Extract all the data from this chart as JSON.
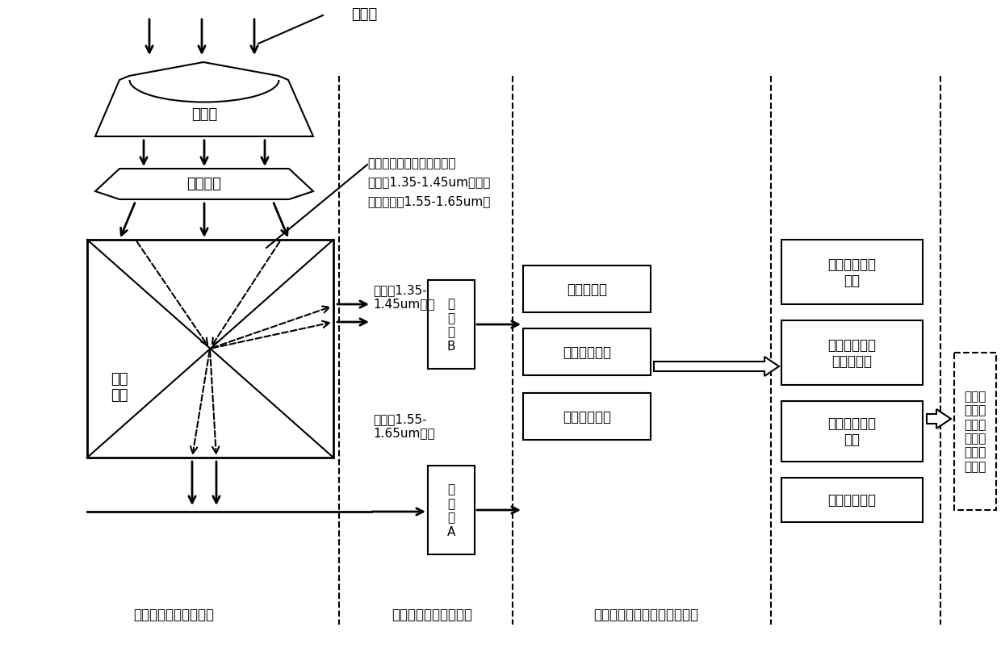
{
  "bg_color": "#ffffff",
  "title_top": "入射光",
  "section1_label": "分光谱双光路光学系统",
  "section2_label": "图像探测及预处理组件",
  "section3_label": "差分图像处理标定方法与算法",
  "label_zhegguang": "遂光罩",
  "label_guangxue": "光学鈥头",
  "label_fenguang": "分光\n棱鈥",
  "annotation_text": "分光棱鈥镀膜面：反射光谱\n范围为1.35-1.45um；透射\n光谱范围为1.55-1.65um。",
  "label_reflect_full": "反射的1.35-\n1.45um波段",
  "label_transmit": "透射的1.55-\n1.65um波段",
  "label_detectorB": "探\n测\n器\nB",
  "label_detectorA": "探\n测\n器\nA",
  "box_preprocess": "前置处理板",
  "box_control": "控制处理电路",
  "box_image_proc": "图像处理电路",
  "box_dual_detector": "双探测器协同\n处理",
  "box_dual_optical": "双光路图像像\n素对齐标定",
  "box_gray_match": "差分图像灰度\n匹配",
  "box_diff_algo": "图像差分算法",
  "box_final": "抑制白\n天大气\n湍流效\n应的大\n视场测\n星图像"
}
